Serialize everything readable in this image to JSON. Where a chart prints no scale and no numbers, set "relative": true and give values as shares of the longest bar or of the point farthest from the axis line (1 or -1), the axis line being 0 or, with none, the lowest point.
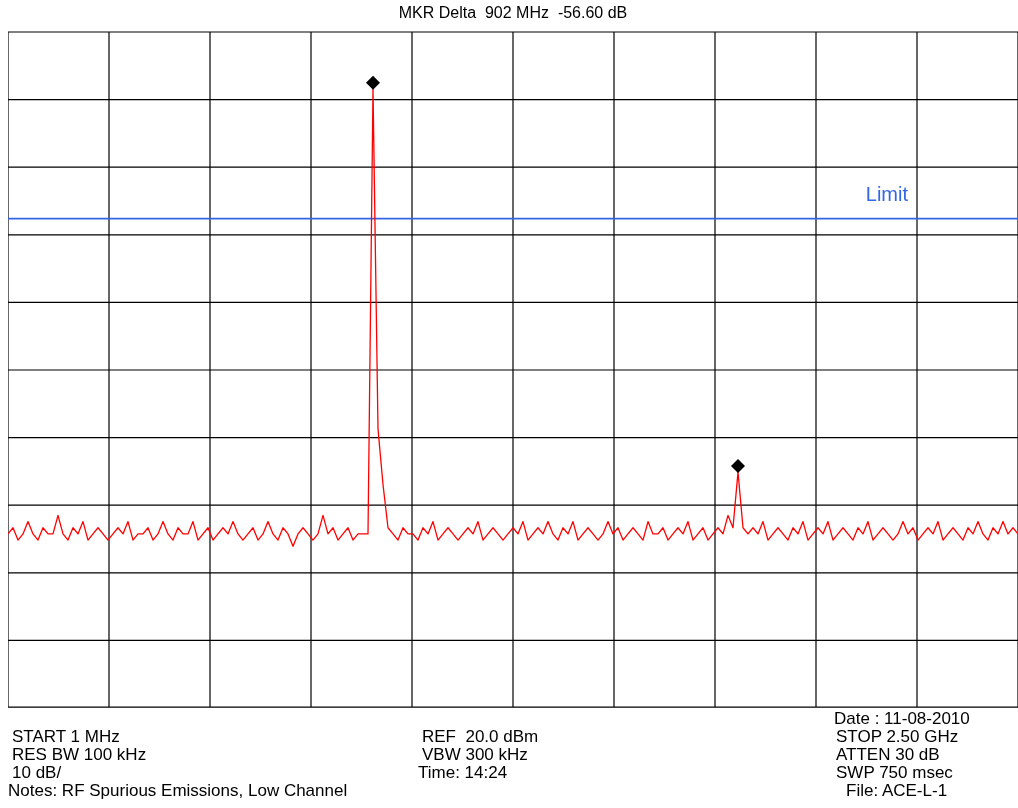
{
  "chart_data": {
    "type": "line",
    "title": "MKR Delta  902 MHz  -56.60 dB",
    "relative": true,
    "grid": true,
    "categories": [
      null,
      null,
      null,
      null,
      null,
      null,
      null,
      null,
      null,
      null,
      null,
      null,
      null,
      null,
      null,
      null,
      null,
      null,
      null,
      null,
      null,
      null,
      null,
      null,
      null,
      null,
      null,
      null,
      null,
      null,
      null,
      null,
      null,
      null,
      null,
      null,
      null,
      null,
      null,
      null,
      null,
      null,
      null,
      null,
      null,
      null,
      null,
      null,
      null,
      null,
      null,
      null,
      null,
      null,
      null,
      null,
      null,
      null,
      null,
      null,
      null,
      null,
      null,
      null,
      null,
      null,
      null,
      null,
      null,
      null,
      null,
      null,
      null,
      null,
      null,
      null,
      null,
      null,
      null,
      null,
      null,
      null,
      null,
      null,
      null,
      null,
      null,
      null,
      null,
      null,
      null,
      null,
      null,
      null,
      null,
      null,
      null,
      null,
      null,
      null,
      null,
      null,
      null,
      null,
      null,
      null,
      null,
      null,
      null,
      null,
      null,
      null,
      null,
      null,
      null,
      null,
      null,
      null,
      null,
      null,
      null,
      null,
      null,
      null,
      null,
      null,
      null,
      null,
      null,
      null,
      null,
      null,
      null,
      null,
      null,
      null,
      null,
      null,
      null,
      null,
      null,
      null,
      null,
      null,
      null,
      null,
      null,
      null,
      null,
      null,
      null,
      null,
      null,
      null,
      null,
      null,
      null,
      null,
      null,
      null,
      null,
      null,
      null,
      null,
      null,
      null,
      null,
      null,
      null,
      null,
      null,
      null,
      null,
      null,
      null,
      null,
      null,
      null,
      null,
      null,
      null,
      null,
      null,
      null,
      null,
      null,
      null,
      null,
      null,
      null,
      null,
      null,
      null,
      null,
      null,
      null,
      null,
      null,
      null,
      null,
      null,
      null,
      null
    ],
    "series": [
      {
        "color": "#ff0000",
        "marker": "none",
        "values": [
          0.28,
          0.29,
          0.27,
          0.28,
          0.3,
          0.28,
          0.27,
          0.29,
          0.28,
          0.28,
          0.31,
          0.28,
          0.27,
          0.29,
          0.28,
          0.3,
          0.27,
          0.28,
          0.29,
          0.28,
          0.27,
          0.28,
          0.29,
          0.28,
          0.3,
          0.27,
          0.28,
          0.28,
          0.29,
          0.27,
          0.28,
          0.3,
          0.28,
          0.27,
          0.29,
          0.28,
          0.28,
          0.3,
          0.27,
          0.28,
          0.29,
          0.27,
          0.28,
          0.29,
          0.28,
          0.3,
          0.28,
          0.27,
          0.28,
          0.29,
          0.27,
          0.28,
          0.3,
          0.28,
          0.27,
          0.29,
          0.28,
          0.26,
          0.28,
          0.29,
          0.28,
          0.27,
          0.28,
          0.31,
          0.28,
          0.29,
          0.27,
          0.28,
          0.29,
          0.27,
          0.28,
          0.28,
          0.28,
          1.0,
          0.45,
          0.36,
          0.29,
          0.28,
          0.27,
          0.29,
          0.28,
          0.28,
          0.27,
          0.29,
          0.28,
          0.3,
          0.27,
          0.28,
          0.29,
          0.28,
          0.27,
          0.28,
          0.29,
          0.28,
          0.3,
          0.27,
          0.28,
          0.29,
          0.28,
          0.27,
          0.28,
          0.29,
          0.28,
          0.3,
          0.27,
          0.28,
          0.29,
          0.28,
          0.3,
          0.28,
          0.27,
          0.29,
          0.28,
          0.3,
          0.27,
          0.28,
          0.29,
          0.28,
          0.27,
          0.28,
          0.3,
          0.28,
          0.29,
          0.27,
          0.28,
          0.29,
          0.28,
          0.27,
          0.3,
          0.28,
          0.28,
          0.29,
          0.27,
          0.28,
          0.29,
          0.28,
          0.3,
          0.27,
          0.28,
          0.29,
          0.27,
          0.28,
          0.29,
          0.28,
          0.31,
          0.29,
          0.38,
          0.29,
          0.28,
          0.29,
          0.28,
          0.3,
          0.27,
          0.28,
          0.29,
          0.28,
          0.27,
          0.29,
          0.28,
          0.3,
          0.27,
          0.28,
          0.29,
          0.28,
          0.3,
          0.27,
          0.28,
          0.29,
          0.28,
          0.27,
          0.29,
          0.28,
          0.3,
          0.27,
          0.28,
          0.29,
          0.28,
          0.27,
          0.28,
          0.3,
          0.28,
          0.29,
          0.27,
          0.28,
          0.29,
          0.28,
          0.3,
          0.27,
          0.28,
          0.29,
          0.28,
          0.27,
          0.29,
          0.28,
          0.3,
          0.28,
          0.27,
          0.29,
          0.28,
          0.3,
          0.28,
          0.29,
          0.28
        ]
      }
    ],
    "ref_lines": [
      {
        "axis": "y",
        "value": 0.79,
        "label": "Limit",
        "color": "#3366e6"
      }
    ],
    "annotations": [
      "START 1 MHz",
      "RES BW 100 kHz",
      "10 dB/",
      "Notes: RF Spurious Emissions, Low Channel",
      "REF  20.0 dBm",
      "VBW 300 kHz",
      "Time: 14:24",
      "Date : 11-08-2010",
      "STOP 2.50 GHz",
      "ATTEN 30 dB",
      "SWP 750 msec",
      "File: ACE-L-1"
    ]
  }
}
